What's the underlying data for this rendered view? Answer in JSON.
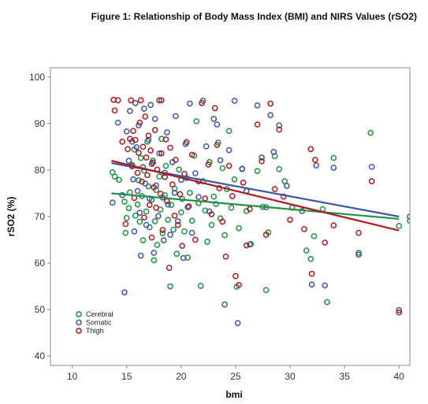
{
  "figure_title": "Figure 1: Relationship of Body Mass Index (BMI) and NIRS Values (rSO2)",
  "colors": {
    "cerebral": "#1e9443",
    "somatic": "#3f56a8",
    "thigh": "#b01b20",
    "plot_border": "#8a8a8a",
    "plot_background": "#ffffff",
    "page_background": "#ffffff"
  },
  "chart_data": {
    "type": "scatter",
    "title": "",
    "xlabel": "bmi",
    "ylabel": "rSO2 (%)",
    "xlim": [
      8,
      41
    ],
    "ylim": [
      38,
      102
    ],
    "xticks": [
      10,
      15,
      20,
      25,
      30,
      35,
      40
    ],
    "yticks": [
      40,
      50,
      60,
      70,
      80,
      90,
      100
    ],
    "grid": false,
    "legend_position": "bottom-left",
    "series": [
      {
        "name": "Cerebral",
        "color": "#1e9443",
        "fit_line": {
          "x": [
            13.6,
            40.0
          ],
          "y": [
            75.0,
            69.5
          ]
        },
        "points": [
          [
            13.7,
            79.5
          ],
          [
            13.9,
            78.6
          ],
          [
            14.3,
            77.9
          ],
          [
            14.8,
            73.2
          ],
          [
            14.9,
            66.5
          ],
          [
            15.0,
            69.7
          ],
          [
            15.2,
            71.8
          ],
          [
            15.3,
            75.2
          ],
          [
            15.5,
            81.1
          ],
          [
            15.7,
            84.4
          ],
          [
            15.8,
            70.2
          ],
          [
            16.0,
            72.6
          ],
          [
            16.1,
            77.8
          ],
          [
            16.2,
            68.9
          ],
          [
            16.3,
            82.6
          ],
          [
            16.4,
            74.4
          ],
          [
            16.5,
            64.9
          ],
          [
            16.6,
            79.9
          ],
          [
            16.8,
            71.1
          ],
          [
            16.9,
            86.1
          ],
          [
            17.0,
            76.5
          ],
          [
            17.1,
            67.7
          ],
          [
            17.3,
            73.6
          ],
          [
            17.4,
            82.0
          ],
          [
            17.5,
            60.6
          ],
          [
            17.6,
            69.0
          ],
          [
            17.7,
            75.7
          ],
          [
            17.8,
            63.9
          ],
          [
            18.0,
            78.6
          ],
          [
            18.1,
            71.5
          ],
          [
            18.2,
            86.7
          ],
          [
            18.3,
            66.4
          ],
          [
            18.5,
            74.6
          ],
          [
            18.6,
            80.9
          ],
          [
            18.8,
            69.3
          ],
          [
            19.0,
            55.0
          ],
          [
            19.1,
            72.5
          ],
          [
            19.3,
            67.2
          ],
          [
            19.4,
            76.0
          ],
          [
            19.6,
            62.0
          ],
          [
            19.8,
            80.1
          ],
          [
            20.0,
            70.9
          ],
          [
            20.1,
            73.8
          ],
          [
            20.3,
            66.8
          ],
          [
            20.5,
            78.3
          ],
          [
            20.6,
            61.2
          ],
          [
            20.8,
            75.1
          ],
          [
            21.0,
            69.1
          ],
          [
            21.2,
            83.1
          ],
          [
            21.4,
            90.5
          ],
          [
            21.6,
            72.9
          ],
          [
            21.8,
            55.1
          ],
          [
            22.0,
            77.6
          ],
          [
            22.2,
            71.3
          ],
          [
            22.4,
            64.6
          ],
          [
            22.6,
            81.7
          ],
          [
            22.8,
            68.2
          ],
          [
            23.0,
            74.3
          ],
          [
            23.2,
            72.7
          ],
          [
            23.4,
            85.9
          ],
          [
            23.6,
            69.6
          ],
          [
            23.8,
            80.4
          ],
          [
            24.0,
            66.0
          ],
          [
            24.2,
            75.9
          ],
          [
            24.4,
            88.4
          ],
          [
            24.6,
            71.9
          ],
          [
            24.9,
            78.0
          ],
          [
            25.1,
            54.9
          ],
          [
            25.3,
            67.5
          ],
          [
            25.6,
            80.2
          ],
          [
            26.0,
            71.2
          ],
          [
            26.4,
            64.1
          ],
          [
            27.0,
            79.8
          ],
          [
            27.5,
            72.1
          ],
          [
            27.8,
            54.2
          ],
          [
            28.0,
            66.6
          ],
          [
            28.6,
            83.0
          ],
          [
            29.0,
            80.2
          ],
          [
            29.5,
            77.6
          ],
          [
            30.2,
            71.9
          ],
          [
            31.5,
            62.7
          ],
          [
            31.9,
            60.9
          ],
          [
            32.2,
            65.8
          ],
          [
            33.0,
            71.6
          ],
          [
            33.4,
            51.6
          ],
          [
            34.0,
            82.6
          ],
          [
            36.3,
            62.2
          ],
          [
            37.4,
            88.0
          ],
          [
            40.0,
            68.0
          ],
          [
            41.0,
            69.1
          ]
        ]
      },
      {
        "name": "Somatic",
        "color": "#3f56a8",
        "fit_line": {
          "x": [
            13.6,
            40.0
          ],
          "y": [
            81.5,
            70.0
          ]
        },
        "points": [
          [
            13.7,
            73.0
          ],
          [
            14.2,
            90.2
          ],
          [
            14.6,
            74.6
          ],
          [
            14.8,
            53.7
          ],
          [
            15.0,
            88.3
          ],
          [
            15.2,
            82.0
          ],
          [
            15.3,
            92.7
          ],
          [
            15.5,
            86.1
          ],
          [
            15.6,
            78.0
          ],
          [
            15.7,
            66.8
          ],
          [
            15.8,
            94.4
          ],
          [
            15.9,
            84.9
          ],
          [
            16.0,
            75.5
          ],
          [
            16.1,
            89.6
          ],
          [
            16.2,
            70.8
          ],
          [
            16.3,
            61.6
          ],
          [
            16.5,
            80.6
          ],
          [
            16.6,
            93.2
          ],
          [
            16.7,
            77.1
          ],
          [
            16.8,
            68.2
          ],
          [
            17.0,
            86.5
          ],
          [
            17.1,
            73.9
          ],
          [
            17.2,
            94.0
          ],
          [
            17.3,
            81.3
          ],
          [
            17.5,
            62.2
          ],
          [
            17.6,
            91.0
          ],
          [
            17.7,
            76.7
          ],
          [
            17.9,
            70.1
          ],
          [
            18.0,
            83.6
          ],
          [
            18.2,
            95.0
          ],
          [
            18.3,
            74.1
          ],
          [
            18.4,
            64.9
          ],
          [
            18.5,
            79.4
          ],
          [
            18.7,
            88.1
          ],
          [
            18.8,
            72.6
          ],
          [
            19.0,
            66.1
          ],
          [
            19.2,
            81.7
          ],
          [
            19.4,
            75.1
          ],
          [
            19.5,
            91.6
          ],
          [
            19.7,
            69.0
          ],
          [
            20.0,
            77.9
          ],
          [
            20.2,
            61.1
          ],
          [
            20.4,
            85.6
          ],
          [
            20.6,
            72.0
          ],
          [
            20.8,
            94.3
          ],
          [
            21.0,
            66.5
          ],
          [
            21.3,
            79.3
          ],
          [
            21.6,
            74.2
          ],
          [
            22.0,
            94.9
          ],
          [
            22.3,
            85.1
          ],
          [
            22.6,
            71.1
          ],
          [
            23.0,
            91.0
          ],
          [
            23.3,
            89.8
          ],
          [
            23.6,
            82.1
          ],
          [
            24.0,
            51.1
          ],
          [
            24.4,
            84.3
          ],
          [
            24.9,
            94.9
          ],
          [
            25.2,
            47.1
          ],
          [
            25.6,
            80.3
          ],
          [
            26.0,
            75.5
          ],
          [
            26.3,
            64.0
          ],
          [
            27.0,
            93.9
          ],
          [
            27.4,
            82.7
          ],
          [
            27.8,
            72.0
          ],
          [
            28.2,
            91.8
          ],
          [
            28.5,
            83.9
          ],
          [
            29.0,
            89.6
          ],
          [
            29.7,
            76.6
          ],
          [
            31.1,
            71.2
          ],
          [
            32.0,
            55.4
          ],
          [
            32.4,
            81.0
          ],
          [
            33.2,
            55.2
          ],
          [
            34.0,
            80.5
          ],
          [
            36.3,
            61.8
          ],
          [
            37.5,
            80.7
          ],
          [
            40.0,
            49.9
          ],
          [
            41.0,
            70.0
          ]
        ]
      },
      {
        "name": "Thigh",
        "color": "#b01b20",
        "fit_line": {
          "x": [
            13.6,
            40.0
          ],
          "y": [
            82.0,
            67.0
          ]
        },
        "points": [
          [
            13.8,
            95.1
          ],
          [
            13.9,
            92.8
          ],
          [
            14.2,
            95.0
          ],
          [
            14.6,
            86.1
          ],
          [
            14.9,
            68.4
          ],
          [
            15.1,
            84.5
          ],
          [
            15.3,
            86.7
          ],
          [
            15.4,
            95.0
          ],
          [
            15.5,
            80.8
          ],
          [
            15.6,
            88.4
          ],
          [
            15.7,
            74.0
          ],
          [
            15.8,
            86.5
          ],
          [
            16.0,
            79.4
          ],
          [
            16.1,
            83.7
          ],
          [
            16.2,
            90.2
          ],
          [
            16.3,
            95.0
          ],
          [
            16.4,
            77.5
          ],
          [
            16.5,
            85.0
          ],
          [
            16.6,
            69.8
          ],
          [
            16.7,
            91.5
          ],
          [
            16.8,
            82.7
          ],
          [
            16.9,
            78.9
          ],
          [
            17.0,
            87.4
          ],
          [
            17.1,
            72.5
          ],
          [
            17.2,
            84.2
          ],
          [
            17.3,
            65.5
          ],
          [
            17.4,
            81.6
          ],
          [
            17.5,
            76.3
          ],
          [
            17.6,
            88.6
          ],
          [
            17.7,
            71.9
          ],
          [
            17.8,
            80.1
          ],
          [
            18.0,
            95.0
          ],
          [
            18.1,
            74.9
          ],
          [
            18.2,
            83.6
          ],
          [
            18.3,
            67.1
          ],
          [
            18.5,
            78.5
          ],
          [
            18.6,
            86.6
          ],
          [
            18.7,
            73.3
          ],
          [
            18.9,
            59.0
          ],
          [
            19.0,
            84.8
          ],
          [
            19.2,
            76.9
          ],
          [
            19.4,
            70.2
          ],
          [
            19.5,
            82.2
          ],
          [
            19.7,
            68.2
          ],
          [
            19.9,
            74.8
          ],
          [
            20.1,
            63.7
          ],
          [
            20.3,
            79.2
          ],
          [
            20.5,
            86.0
          ],
          [
            20.7,
            72.2
          ],
          [
            21.0,
            83.3
          ],
          [
            21.3,
            65.0
          ],
          [
            21.6,
            77.6
          ],
          [
            21.9,
            94.4
          ],
          [
            22.2,
            73.9
          ],
          [
            22.5,
            81.2
          ],
          [
            22.8,
            70.5
          ],
          [
            23.1,
            93.3
          ],
          [
            23.3,
            85.4
          ],
          [
            23.5,
            76.1
          ],
          [
            23.8,
            68.9
          ],
          [
            24.1,
            61.4
          ],
          [
            24.4,
            80.9
          ],
          [
            24.7,
            74.4
          ],
          [
            25.0,
            57.2
          ],
          [
            25.3,
            55.3
          ],
          [
            25.7,
            77.3
          ],
          [
            26.0,
            63.8
          ],
          [
            26.3,
            71.6
          ],
          [
            27.0,
            89.8
          ],
          [
            27.4,
            81.9
          ],
          [
            27.8,
            66.1
          ],
          [
            28.2,
            94.3
          ],
          [
            28.6,
            75.9
          ],
          [
            29.0,
            88.7
          ],
          [
            29.4,
            74.3
          ],
          [
            30.0,
            69.3
          ],
          [
            31.3,
            67.3
          ],
          [
            31.9,
            84.5
          ],
          [
            32.3,
            82.2
          ],
          [
            32.0,
            57.7
          ],
          [
            33.2,
            64.4
          ],
          [
            34.0,
            68.1
          ],
          [
            36.3,
            66.5
          ],
          [
            37.5,
            77.6
          ],
          [
            40.0,
            49.4
          ]
        ]
      }
    ]
  }
}
